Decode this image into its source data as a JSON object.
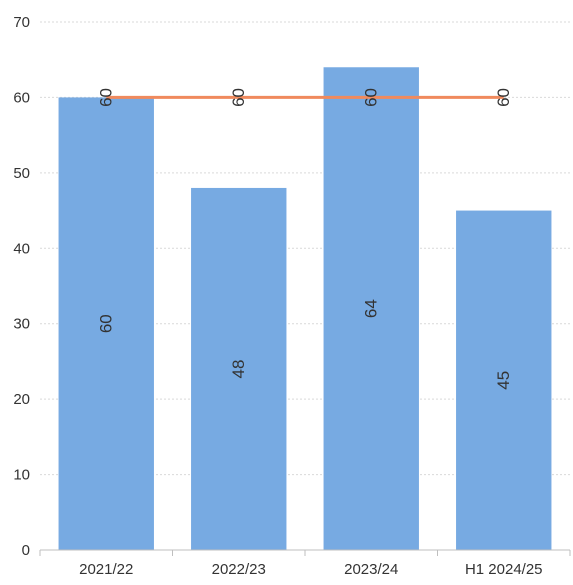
{
  "chart_data": {
    "type": "bar",
    "categories": [
      "2021/22",
      "2022/23",
      "2023/24",
      "H1 2024/25"
    ],
    "series": [
      {
        "kind": "bar",
        "values": [
          60,
          48,
          64,
          45
        ],
        "color": "#77aae2"
      },
      {
        "kind": "line",
        "values": [
          60,
          60,
          60,
          60
        ],
        "color": "#f08a5d"
      }
    ],
    "ylim": [
      0,
      70
    ],
    "yticks": [
      0,
      10,
      20,
      30,
      40,
      50,
      60,
      70
    ],
    "grid": true,
    "gridColor": "#d9d9d9",
    "axisColor": "#bfbfbf",
    "title": "",
    "xlabel": "",
    "ylabel": ""
  }
}
